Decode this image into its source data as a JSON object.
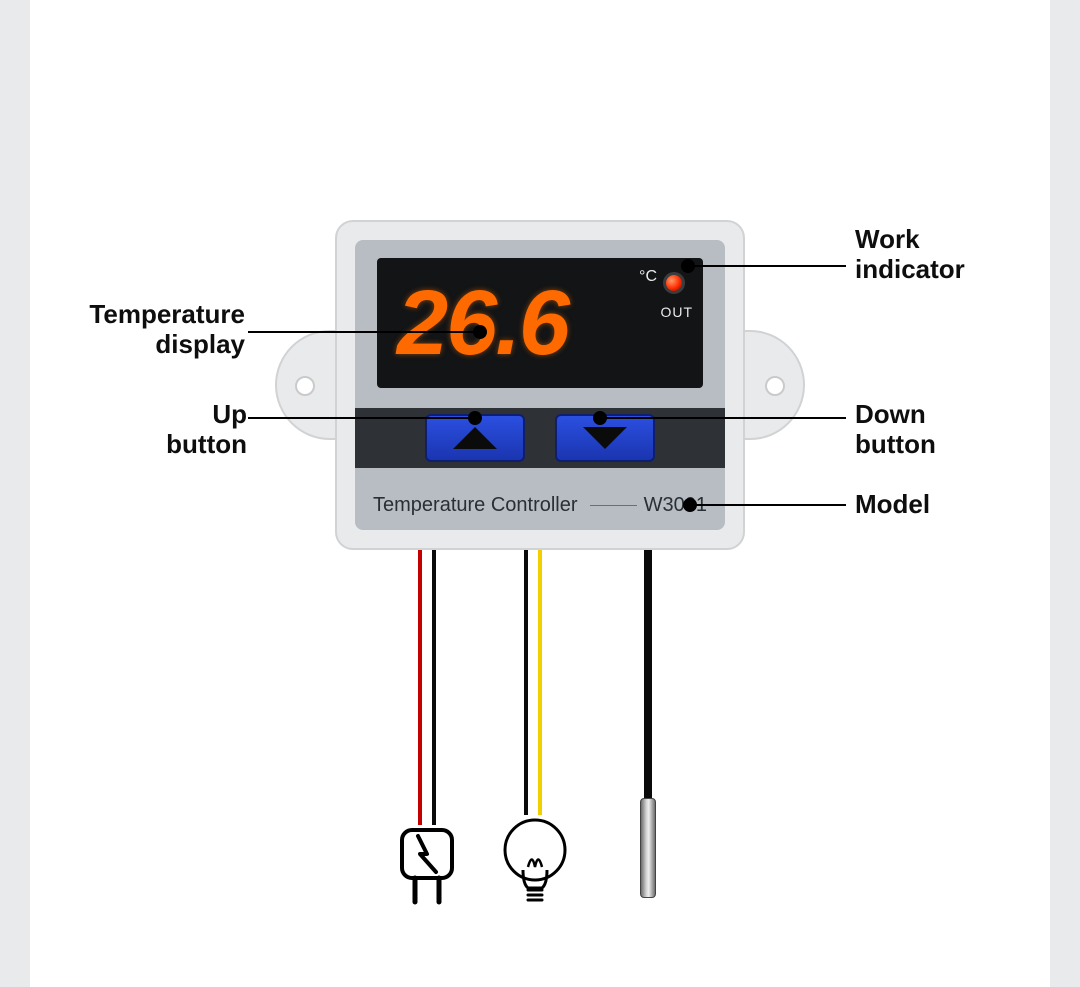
{
  "diagram": {
    "type": "infographic",
    "background_color": "#ffffff",
    "edge_strip_color": "#e8eaec",
    "label_font_size": 26,
    "label_font_weight": "700",
    "label_color": "#0e0e0e",
    "leader_color": "#000000",
    "leader_width": 2
  },
  "device": {
    "body_color": "#e9eaec",
    "body_border": "#d0d2d4",
    "face_color": "#b7bdc3",
    "button_bar_color": "#2e3236",
    "button_color": "#1f3fc8",
    "button_border": "#0e1f70",
    "arrow_color": "#0b0b0b",
    "lcd": {
      "bg": "#121416",
      "value": "26.6",
      "value_color": "#ff6a00",
      "value_fontsize": 92,
      "unit": "°C",
      "out_label": "OUT",
      "led_color": "#ff2a00"
    },
    "footer": {
      "title": "Temperature Controller",
      "model": "W3001",
      "text_color": "#2a2f34",
      "fontsize": 20
    }
  },
  "labels": {
    "work_indicator": "Work\nindicator",
    "temperature_display": "Temperature\ndisplay",
    "up_button": "Up\nbutton",
    "down_button": "Down\nbutton",
    "model": "Model"
  },
  "wires": {
    "power": {
      "colors": [
        "#c40000",
        "#0a0a0a"
      ],
      "icon": "plug"
    },
    "load": {
      "colors": [
        "#0a0a0a",
        "#f4cf00"
      ],
      "icon": "bulb"
    },
    "sensor": {
      "colors": [
        "#0a0a0a"
      ],
      "icon": "probe"
    }
  }
}
